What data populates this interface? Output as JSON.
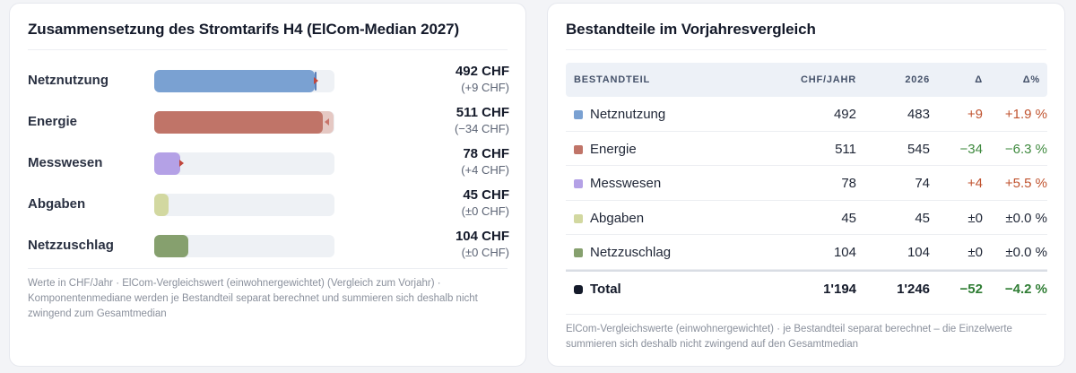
{
  "left": {
    "title": "Zusammensetzung des Stromtarifs H4 (ElCom-Median 2027)",
    "rows": [
      {
        "label": "Netznutzung",
        "value": "492 CHF",
        "delta": "(+9 CHF)",
        "fill_fraction": 0.891,
        "prev_fraction": 0.875,
        "color": "#7aa1d2",
        "trend": "up"
      },
      {
        "label": "Energie",
        "value": "511 CHF",
        "delta": "(−34 CHF)",
        "fill_fraction": 0.937,
        "prev_fraction": 0.997,
        "color": "#c07468",
        "trend": "down"
      },
      {
        "label": "Messwesen",
        "value": "78 CHF",
        "delta": "(+4 CHF)",
        "fill_fraction": 0.142,
        "prev_fraction": 0.134,
        "color": "#b4a1e6",
        "trend": "up"
      },
      {
        "label": "Abgaben",
        "value": "45 CHF",
        "delta": "(±0 CHF)",
        "fill_fraction": 0.082,
        "prev_fraction": 0.082,
        "color": "#d2d8a0",
        "trend": "flat"
      },
      {
        "label": "Netzzuschlag",
        "value": "104 CHF",
        "delta": "(±0 CHF)",
        "fill_fraction": 0.189,
        "prev_fraction": 0.189,
        "color": "#86a06e",
        "trend": "flat"
      }
    ],
    "note": "Werte in CHF/Jahr · ElCom-Vergleichswert (einwohnergewichtet) (Vergleich zum Vorjahr) · Komponentenmediane werden je Bestandteil separat berechnet und summieren sich deshalb nicht zwingend zum Gesamtmedian"
  },
  "right": {
    "title": "Bestandteile im Vorjahresvergleich",
    "headers": {
      "name": "BESTANDTEIL",
      "chf": "CHF/JAHR",
      "prev": "2026",
      "delta": "Δ",
      "delta_pct": "Δ%"
    },
    "rows": [
      {
        "name": "Netznutzung",
        "color": "#7aa1d2",
        "chf": "492",
        "prev": "483",
        "delta": "+9",
        "delta_pct": "+1.9 %",
        "trend": "pos"
      },
      {
        "name": "Energie",
        "color": "#c07468",
        "chf": "511",
        "prev": "545",
        "delta": "−34",
        "delta_pct": "−6.3 %",
        "trend": "neg"
      },
      {
        "name": "Messwesen",
        "color": "#b4a1e6",
        "chf": "78",
        "prev": "74",
        "delta": "+4",
        "delta_pct": "+5.5 %",
        "trend": "pos"
      },
      {
        "name": "Abgaben",
        "color": "#d2d8a0",
        "chf": "45",
        "prev": "45",
        "delta": "±0",
        "delta_pct": "±0.0 %",
        "trend": "zero"
      },
      {
        "name": "Netzzuschlag",
        "color": "#86a06e",
        "chf": "104",
        "prev": "104",
        "delta": "±0",
        "delta_pct": "±0.0 %",
        "trend": "zero"
      }
    ],
    "total": {
      "name": "Total",
      "color": "#141a2a",
      "chf": "1'194",
      "prev": "1'246",
      "delta": "−52",
      "delta_pct": "−4.2 %",
      "trend": "neg"
    },
    "note": "ElCom-Vergleichswerte (einwohnergewichtet) · je Bestandteil separat berechnet – die Einzelwerte summieren sich deshalb nicht zwingend auf den Gesamtmedian"
  }
}
